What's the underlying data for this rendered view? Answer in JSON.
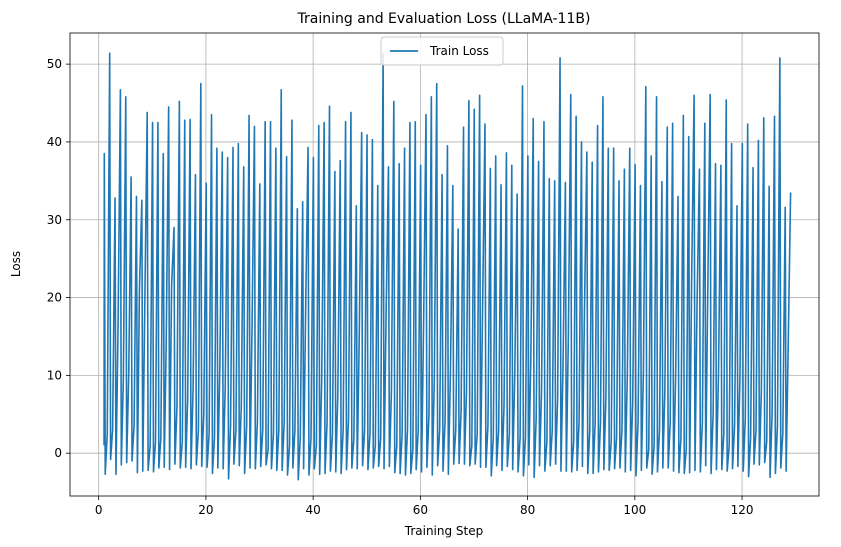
{
  "chart_data": {
    "type": "line",
    "title": "Training and Evaluation Loss (LLaMA-11B)",
    "xlabel": "Training Step",
    "ylabel": "Loss",
    "xlim": [
      -5.35,
      134.35
    ],
    "ylim": [
      -5.5,
      54.0
    ],
    "xticks": [
      0,
      20,
      40,
      60,
      80,
      100,
      120
    ],
    "yticks": [
      0,
      10,
      20,
      30,
      40,
      50
    ],
    "grid": true,
    "legend_position": "top-center",
    "colors": {
      "series": "#1f77b4",
      "grid": "#b0b0b0"
    },
    "series": [
      {
        "name": "Train Loss",
        "peaks": [
          38.5,
          51.4,
          32.8,
          46.7,
          45.8,
          35.5,
          33.0,
          32.5,
          43.8,
          42.5,
          42.5,
          38.5,
          44.5,
          29.0,
          45.2,
          42.8,
          42.9,
          35.8,
          47.5,
          34.7,
          43.5,
          39.2,
          38.7,
          38.0,
          39.3,
          39.8,
          36.8,
          43.4,
          42.0,
          34.6,
          42.6,
          42.6,
          39.2,
          46.7,
          38.1,
          42.8,
          31.4,
          32.3,
          39.3,
          38.0,
          42.1,
          42.5,
          44.6,
          36.2,
          37.6,
          42.6,
          43.8,
          31.8,
          41.2,
          40.9,
          40.3,
          34.4,
          51.4,
          36.8,
          45.2,
          37.2,
          39.2,
          42.5,
          42.6,
          37.0,
          43.5,
          45.8,
          47.5,
          35.8,
          39.5,
          34.4,
          28.8,
          41.9,
          45.3,
          44.2,
          46.0,
          42.3,
          36.6,
          38.2,
          34.5,
          38.6,
          37.0,
          33.3,
          47.2,
          38.2,
          43.0,
          37.5,
          42.6,
          35.3,
          35.0,
          50.8,
          34.8,
          46.1,
          43.3,
          40.0,
          38.7,
          37.4,
          42.1,
          45.8,
          39.2,
          39.2,
          35.0,
          36.5,
          39.2,
          37.1,
          34.4,
          47.1,
          38.2,
          45.8,
          34.9,
          41.9,
          42.4,
          33.0,
          43.4,
          40.7,
          46.0,
          36.5,
          42.4,
          46.1,
          37.2,
          37.0,
          45.4,
          39.8,
          31.8,
          39.8,
          42.3,
          36.7,
          40.2,
          43.1,
          34.3,
          43.3,
          50.8,
          31.6,
          33.5
        ],
        "troughs": [
          -2.7,
          -0.8,
          -2.7,
          -1.5,
          -1.2,
          -1.0,
          -2.5,
          -2.3,
          -2.2,
          -2.4,
          -1.9,
          -1.8,
          -2.1,
          -1.4,
          -1.9,
          -1.8,
          -2.0,
          -1.5,
          -1.7,
          -1.8,
          -2.6,
          -1.9,
          -2.0,
          -3.3,
          -1.4,
          -1.6,
          -2.6,
          -1.9,
          -2.0,
          -1.7,
          -1.5,
          -2.0,
          -2.2,
          -2.2,
          -2.8,
          -1.9,
          -3.4,
          -2.0,
          -2.8,
          -2.0,
          -2.7,
          -2.6,
          -2.3,
          -2.4,
          -2.6,
          -2.1,
          -1.9,
          -2.0,
          -1.6,
          -2.1,
          -1.9,
          -1.7,
          -2.0,
          -1.7,
          -2.5,
          -2.6,
          -2.8,
          -2.6,
          -2.1,
          -2.4,
          -1.8,
          -2.8,
          -1.6,
          -2.3,
          -2.7,
          -1.4,
          -1.3,
          -1.4,
          -1.6,
          -1.4,
          -1.8,
          -1.8,
          -2.9,
          -1.6,
          -2.2,
          -1.7,
          -2.1,
          -2.4,
          -2.9,
          -1.5,
          -3.1,
          -1.6,
          -2.3,
          -1.6,
          -1.4,
          -2.3,
          -2.3,
          -2.4,
          -2.2,
          -1.7,
          -2.6,
          -2.6,
          -2.4,
          -2.1,
          -2.2,
          -2.0,
          -1.9,
          -2.4,
          -2.2,
          -2.9,
          -2.2,
          -1.9,
          -2.7,
          -2.4,
          -1.9,
          -1.9,
          -2.3,
          -2.5,
          -2.6,
          -2.5,
          -2.2,
          -2.4,
          -1.6,
          -2.6,
          -2.1,
          -2.1,
          -2.3,
          -2.0,
          -1.7,
          -2.3,
          -3.0,
          -1.4,
          -1.5,
          -1.2,
          -3.1,
          -2.6,
          -1.9,
          -2.3
        ],
        "mids": [
          2.5,
          3.0,
          15.5,
          9.5,
          10.0,
          3.5,
          21.0,
          19.0,
          1.0,
          1.5,
          2.0,
          14.5,
          21.5,
          6.0,
          1.5,
          7.0,
          8.0,
          3.0,
          5.0,
          2.5,
          2.0,
          11.0,
          8.5,
          3.5,
          3.0,
          6.0,
          3.5,
          16.0,
          4.0,
          3.0,
          0.5,
          2.5,
          3.0,
          4.0,
          1.0,
          3.0,
          2.0,
          18.5,
          2.0,
          1.0,
          9.5,
          4.0,
          2.5,
          7.5,
          3.0,
          4.5,
          2.0,
          15.0,
          3.0,
          2.5,
          1.0,
          2.0,
          17.5,
          8.0,
          1.0,
          2.5,
          3.0,
          0.5,
          3.0,
          16.5,
          5.0,
          9.5,
          3.0,
          4.0,
          10.0,
          3.0,
          5.5,
          8.0,
          1.0,
          2.5,
          18.5,
          3.5,
          2.0,
          3.0,
          6.0,
          2.5,
          10.0,
          2.0,
          2.0,
          12.0,
          4.5,
          8.0,
          1.5,
          3.0,
          7.0,
          11.0,
          15.0,
          1.5,
          4.0,
          18.0,
          3.0,
          4.0,
          4.0,
          7.0,
          1.5,
          2.0,
          3.0,
          10.0,
          6.5,
          4.0,
          10.5,
          0.5,
          1.0,
          3.0,
          8.0,
          4.0,
          9.5,
          2.0,
          0.5,
          22.5,
          19.0,
          4.0,
          20.5,
          5.0,
          10.0,
          2.5,
          1.0,
          3.5,
          9.5,
          4.5,
          2.0,
          3.0,
          8.0,
          1.5,
          5.0,
          3.5,
          2.5,
          13.5
        ]
      }
    ]
  }
}
